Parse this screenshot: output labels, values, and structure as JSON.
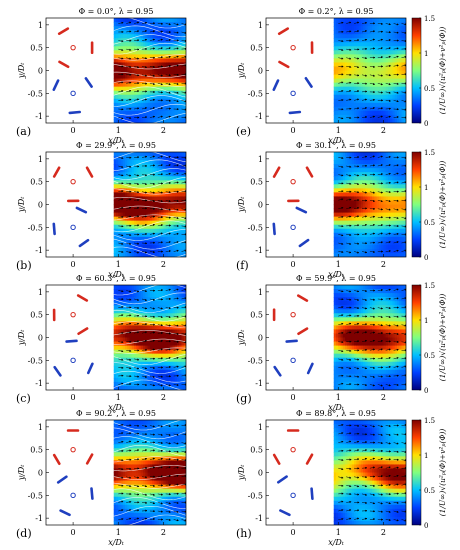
{
  "figure": {
    "background": "#ffffff"
  },
  "x_tick_labels": [
    "0",
    "1",
    "2"
  ],
  "y_tick_labels": [
    "1",
    "0.5",
    "0",
    "-0.5",
    "-1"
  ],
  "colorbar_ticks": [
    "1.5",
    "1",
    "0.5",
    "0"
  ],
  "colors": {
    "blade_upper": "#d62a1e",
    "blade_lower": "#1f3fbf",
    "colormap": [
      "#00007f",
      "#0040ff",
      "#00c0ff",
      "#80ff80",
      "#ffe000",
      "#ff4000",
      "#7f0000"
    ]
  },
  "chart_data": [
    {
      "type": "heatmap",
      "panel": "(a)",
      "title": "Φ = 0.0°, λ = 0.95",
      "xlabel": "x/Dₜ",
      "ylabel": "y/Dₜ",
      "xlim": [
        -0.6,
        2.5
      ],
      "ylim": [
        -1.15,
        1.15
      ],
      "xticks": [
        0,
        1,
        2
      ],
      "yticks": [
        1,
        0.5,
        0,
        -0.5,
        -1
      ],
      "field_x_range": [
        0.9,
        2.5
      ],
      "quiver": true,
      "streamlines": true,
      "wake_mean": 1.1,
      "wake_peak": 1.5
    },
    {
      "type": "heatmap",
      "panel": "(b)",
      "title": "Φ = 29.9°, λ = 0.95",
      "xlabel": "x/Dₜ",
      "ylabel": "y/Dₜ",
      "xlim": [
        -0.6,
        2.5
      ],
      "ylim": [
        -1.15,
        1.15
      ],
      "xticks": [
        0,
        1,
        2
      ],
      "yticks": [
        1,
        0.5,
        0,
        -0.5,
        -1
      ],
      "field_x_range": [
        0.9,
        2.5
      ],
      "quiver": true,
      "streamlines": true,
      "wake_mean": 1.1,
      "wake_peak": 1.5
    },
    {
      "type": "heatmap",
      "panel": "(c)",
      "title": "Φ = 60.3°, λ = 0.95",
      "xlabel": "x/Dₜ",
      "ylabel": "y/Dₜ",
      "xlim": [
        -0.6,
        2.5
      ],
      "ylim": [
        -1.15,
        1.15
      ],
      "xticks": [
        0,
        1,
        2
      ],
      "yticks": [
        1,
        0.5,
        0,
        -0.5,
        -1
      ],
      "field_x_range": [
        0.9,
        2.5
      ],
      "quiver": true,
      "streamlines": true,
      "wake_mean": 1.0,
      "wake_peak": 1.4
    },
    {
      "type": "heatmap",
      "panel": "(d)",
      "title": "Φ = 90.2°, λ = 0.95",
      "xlabel": "x/Dₜ",
      "ylabel": "y/Dₜ",
      "xlim": [
        -0.6,
        2.5
      ],
      "ylim": [
        -1.15,
        1.15
      ],
      "xticks": [
        0,
        1,
        2
      ],
      "yticks": [
        1,
        0.5,
        0,
        -0.5,
        -1
      ],
      "field_x_range": [
        0.9,
        2.5
      ],
      "quiver": true,
      "streamlines": true,
      "wake_mean": 1.1,
      "wake_peak": 1.5
    },
    {
      "type": "heatmap",
      "panel": "(e)",
      "title": "Φ = 0.2°, λ = 0.95",
      "xlabel": "x/Dₜ",
      "ylabel": "y/Dₜ",
      "xlim": [
        -0.6,
        2.5
      ],
      "ylim": [
        -1.15,
        1.15
      ],
      "xticks": [
        0,
        1,
        2
      ],
      "yticks": [
        1,
        0.5,
        0,
        -0.5,
        -1
      ],
      "field_x_range": [
        0.9,
        2.5
      ],
      "quiver": true,
      "streamlines": false,
      "wake_mean": 0.6,
      "wake_peak": 0.75
    },
    {
      "type": "heatmap",
      "panel": "(f)",
      "title": "Φ = 30.1°, λ = 0.95",
      "xlabel": "x/Dₜ",
      "ylabel": "y/Dₜ",
      "xlim": [
        -0.6,
        2.5
      ],
      "ylim": [
        -1.15,
        1.15
      ],
      "xticks": [
        0,
        1,
        2
      ],
      "yticks": [
        1,
        0.5,
        0,
        -0.5,
        -1
      ],
      "field_x_range": [
        0.9,
        2.5
      ],
      "quiver": true,
      "streamlines": false,
      "wake_mean": 0.75,
      "wake_peak": 1.25
    },
    {
      "type": "heatmap",
      "panel": "(g)",
      "title": "Φ = 59.9°, λ = 0.95",
      "xlabel": "x/Dₜ",
      "ylabel": "y/Dₜ",
      "xlim": [
        -0.6,
        2.5
      ],
      "ylim": [
        -1.15,
        1.15
      ],
      "xticks": [
        0,
        1,
        2
      ],
      "yticks": [
        1,
        0.5,
        0,
        -0.5,
        -1
      ],
      "field_x_range": [
        0.9,
        2.5
      ],
      "quiver": true,
      "streamlines": false,
      "wake_mean": 0.75,
      "wake_peak": 1.35
    },
    {
      "type": "heatmap",
      "panel": "(h)",
      "title": "Φ = 89.8°, λ = 0.95",
      "xlabel": "x/Dₜ",
      "ylabel": "y/Dₜ",
      "xlim": [
        -0.6,
        2.5
      ],
      "ylim": [
        -1.15,
        1.15
      ],
      "xticks": [
        0,
        1,
        2
      ],
      "yticks": [
        1,
        0.5,
        0,
        -0.5,
        -1
      ],
      "field_x_range": [
        0.9,
        2.5
      ],
      "quiver": true,
      "streamlines": false,
      "wake_mean": 0.7,
      "wake_peak": 1.2
    }
  ],
  "colorbars": [
    {
      "label": "(1/U∞)√(u²ₚ(Φ)+v²ₚ(Φ))",
      "range": [
        0,
        1.5
      ],
      "row": 0
    },
    {
      "label": "(1/U∞)√(u²ₚ(Φ)+v²ₚ(Φ))",
      "range": [
        0,
        1.5
      ],
      "row": 1
    },
    {
      "label": "(1/U∞)√(u²ₚ(Φ)+v²ₚ(Φ))",
      "range": [
        0,
        1.5
      ],
      "row": 2
    },
    {
      "label": "(1/U∞)√(u²ₚ(Φ)+v²ₚ(Φ))",
      "range": [
        0,
        1.5
      ],
      "row": 3
    }
  ]
}
